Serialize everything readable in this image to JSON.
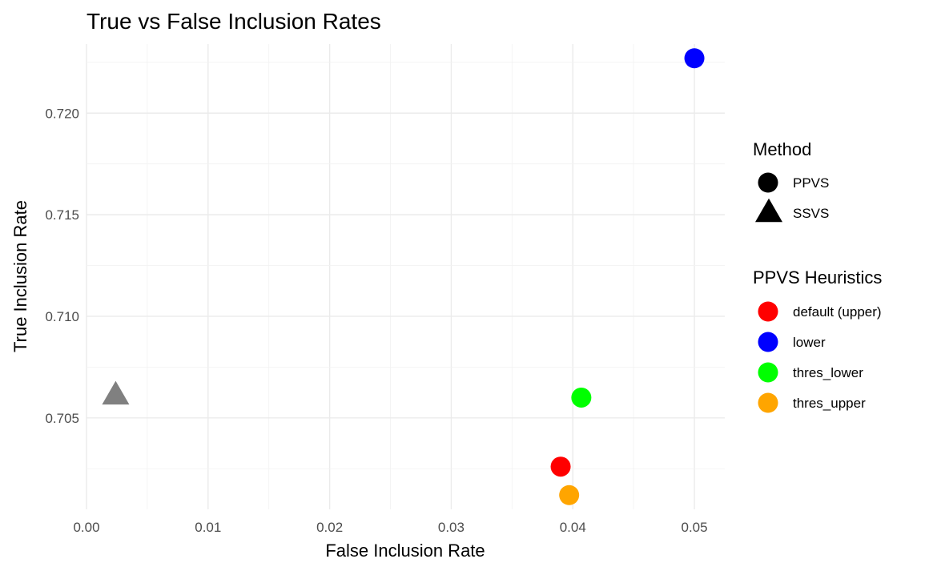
{
  "chart_data": {
    "type": "scatter",
    "title": "True vs False Inclusion Rates",
    "xlabel": "False Inclusion Rate",
    "ylabel": "True Inclusion Rate",
    "xlim": [
      0.0,
      0.0525
    ],
    "ylim": [
      0.7005,
      0.7234
    ],
    "x_ticks": [
      0.0,
      0.01,
      0.02,
      0.03,
      0.04,
      0.05
    ],
    "x_tick_labels": [
      "0.00",
      "0.01",
      "0.02",
      "0.03",
      "0.04",
      "0.05"
    ],
    "y_ticks": [
      0.705,
      0.71,
      0.715,
      0.72
    ],
    "y_tick_labels": [
      "0.705",
      "0.710",
      "0.715",
      "0.720"
    ],
    "grid": true,
    "points": [
      {
        "x": 0.039,
        "y": 0.7026,
        "method": "PPVS",
        "heuristic": "default (upper)",
        "color": "#ff0000"
      },
      {
        "x": 0.05,
        "y": 0.7227,
        "method": "PPVS",
        "heuristic": "lower",
        "color": "#0000ff"
      },
      {
        "x": 0.0407,
        "y": 0.706,
        "method": "PPVS",
        "heuristic": "thres_lower",
        "color": "#00ff00"
      },
      {
        "x": 0.0397,
        "y": 0.7012,
        "method": "PPVS",
        "heuristic": "thres_upper",
        "color": "#ffa500"
      },
      {
        "x": 0.0024,
        "y": 0.7061,
        "method": "SSVS",
        "heuristic": null,
        "color": "#808080"
      }
    ],
    "legends": [
      {
        "title": "Method",
        "placement": "right",
        "entries": [
          {
            "label": "PPVS",
            "shape": "circle",
            "color": "#000000"
          },
          {
            "label": "SSVS",
            "shape": "triangle",
            "color": "#000000"
          }
        ]
      },
      {
        "title": "PPVS Heuristics",
        "placement": "right",
        "entries": [
          {
            "label": "default (upper)",
            "shape": "circle",
            "color": "#ff0000"
          },
          {
            "label": "lower",
            "shape": "circle",
            "color": "#0000ff"
          },
          {
            "label": "thres_lower",
            "shape": "circle",
            "color": "#00ff00"
          },
          {
            "label": "thres_upper",
            "shape": "circle",
            "color": "#ffa500"
          }
        ]
      }
    ]
  }
}
